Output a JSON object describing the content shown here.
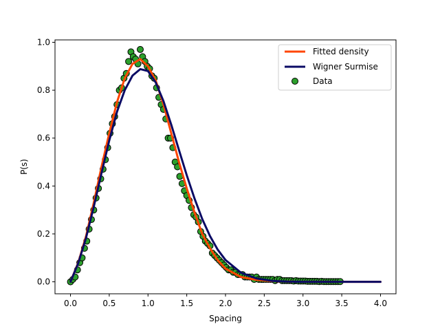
{
  "chart_data": {
    "type": "scatter",
    "title": "",
    "xlabel": "Spacing",
    "ylabel": "P(s)",
    "xlim": [
      -0.2,
      4.2
    ],
    "ylim": [
      -0.05,
      1.01
    ],
    "xticks": [
      0.0,
      0.5,
      1.0,
      1.5,
      2.0,
      2.5,
      3.0,
      3.5,
      4.0
    ],
    "xtick_labels": [
      "0.0",
      "0.5",
      "1.0",
      "1.5",
      "2.0",
      "2.5",
      "3.0",
      "3.5",
      "4.0"
    ],
    "yticks": [
      0.0,
      0.2,
      0.4,
      0.6,
      0.8,
      1.0
    ],
    "ytick_labels": [
      "0.0",
      "0.2",
      "0.4",
      "0.6",
      "0.8",
      "1.0"
    ],
    "grid": false,
    "legend_position": "top-right",
    "series": [
      {
        "name": "Fitted density",
        "kind": "line",
        "color": "#ff4500",
        "x": [
          0.0,
          0.1,
          0.2,
          0.3,
          0.4,
          0.5,
          0.6,
          0.7,
          0.8,
          0.9,
          1.0,
          1.1,
          1.2,
          1.3,
          1.4,
          1.5,
          1.6,
          1.7,
          1.8,
          1.9,
          2.0,
          2.2,
          2.4,
          2.6,
          2.8,
          3.0,
          3.2,
          3.4,
          3.6,
          3.8,
          4.0
        ],
        "y": [
          0.0,
          0.08,
          0.19,
          0.33,
          0.48,
          0.62,
          0.75,
          0.85,
          0.91,
          0.93,
          0.9,
          0.84,
          0.74,
          0.62,
          0.5,
          0.39,
          0.29,
          0.2,
          0.14,
          0.09,
          0.055,
          0.02,
          0.008,
          0.003,
          0.001,
          0.0,
          0.0,
          0.0,
          0.0,
          0.0,
          0.0
        ]
      },
      {
        "name": "Wigner Surmise",
        "kind": "line",
        "color": "#0a0a64",
        "x": [
          0.0,
          0.1,
          0.2,
          0.3,
          0.4,
          0.5,
          0.6,
          0.7,
          0.8,
          0.9,
          1.0,
          1.1,
          1.2,
          1.3,
          1.4,
          1.5,
          1.6,
          1.7,
          1.8,
          1.9,
          2.0,
          2.2,
          2.4,
          2.6,
          2.8,
          3.0,
          3.2,
          3.4,
          3.6,
          3.8,
          4.0
        ],
        "y": [
          0.0,
          0.078,
          0.183,
          0.313,
          0.454,
          0.59,
          0.71,
          0.8,
          0.861,
          0.888,
          0.88,
          0.832,
          0.754,
          0.656,
          0.55,
          0.445,
          0.348,
          0.262,
          0.191,
          0.134,
          0.091,
          0.038,
          0.014,
          0.004,
          0.001,
          0.0,
          0.0,
          0.0,
          0.0,
          0.0,
          0.0
        ]
      },
      {
        "name": "Data",
        "kind": "scatter",
        "color": "#2ca02c",
        "edgecolor": "#000000",
        "x": [
          0.0,
          0.03,
          0.06,
          0.09,
          0.12,
          0.15,
          0.18,
          0.21,
          0.24,
          0.27,
          0.3,
          0.33,
          0.36,
          0.39,
          0.42,
          0.45,
          0.48,
          0.51,
          0.54,
          0.57,
          0.6,
          0.63,
          0.66,
          0.69,
          0.72,
          0.75,
          0.78,
          0.81,
          0.84,
          0.87,
          0.9,
          0.93,
          0.96,
          0.99,
          1.02,
          1.05,
          1.08,
          1.11,
          1.14,
          1.17,
          1.2,
          1.23,
          1.26,
          1.29,
          1.32,
          1.35,
          1.38,
          1.41,
          1.44,
          1.47,
          1.5,
          1.53,
          1.56,
          1.59,
          1.62,
          1.65,
          1.68,
          1.71,
          1.74,
          1.77,
          1.8,
          1.83,
          1.86,
          1.89,
          1.92,
          1.95,
          1.98,
          2.01,
          2.04,
          2.07,
          2.1,
          2.13,
          2.16,
          2.19,
          2.22,
          2.25,
          2.28,
          2.31,
          2.34,
          2.37,
          2.4,
          2.43,
          2.46,
          2.49,
          2.52,
          2.55,
          2.58,
          2.61,
          2.64,
          2.67,
          2.7,
          2.73,
          2.76,
          2.79,
          2.82,
          2.85,
          2.88,
          2.91,
          2.94,
          2.97,
          3.0,
          3.03,
          3.06,
          3.09,
          3.12,
          3.15,
          3.18,
          3.21,
          3.24,
          3.27,
          3.3,
          3.33,
          3.36,
          3.39,
          3.42,
          3.45,
          3.48
        ],
        "y": [
          0.0,
          0.01,
          0.02,
          0.05,
          0.08,
          0.1,
          0.14,
          0.17,
          0.22,
          0.26,
          0.3,
          0.35,
          0.39,
          0.43,
          0.47,
          0.51,
          0.56,
          0.62,
          0.66,
          0.69,
          0.74,
          0.8,
          0.81,
          0.85,
          0.87,
          0.92,
          0.96,
          0.94,
          0.93,
          0.91,
          0.97,
          0.94,
          0.92,
          0.9,
          0.89,
          0.86,
          0.85,
          0.81,
          0.77,
          0.74,
          0.72,
          0.68,
          0.6,
          0.6,
          0.56,
          0.5,
          0.48,
          0.44,
          0.41,
          0.38,
          0.36,
          0.34,
          0.31,
          0.28,
          0.27,
          0.25,
          0.21,
          0.19,
          0.17,
          0.16,
          0.15,
          0.12,
          0.11,
          0.1,
          0.09,
          0.08,
          0.07,
          0.06,
          0.05,
          0.05,
          0.04,
          0.04,
          0.03,
          0.03,
          0.03,
          0.02,
          0.02,
          0.02,
          0.02,
          0.01,
          0.02,
          0.01,
          0.01,
          0.01,
          0.01,
          0.01,
          0.01,
          0.01,
          0.005,
          0.01,
          0.01,
          0.005,
          0.005,
          0.005,
          0.005,
          0.005,
          0.003,
          0.005,
          0.003,
          0.003,
          0.003,
          0.003,
          0.002,
          0.002,
          0.002,
          0.002,
          0.002,
          0.001,
          0.002,
          0.001,
          0.001,
          0.001,
          0.001,
          0.001,
          0.001,
          0.001,
          0.001
        ]
      }
    ]
  }
}
